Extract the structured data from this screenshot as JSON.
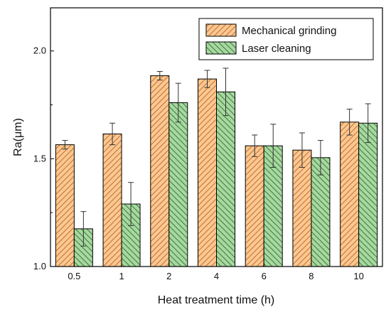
{
  "chart_data": {
    "type": "bar",
    "title": "",
    "xlabel": "Heat treatment time (h)",
    "ylabel": "Ra(μm)",
    "ylim": [
      1.0,
      2.2
    ],
    "yticks": [
      "1.0",
      "1.5",
      "2.0"
    ],
    "ytick_values": [
      1.0,
      1.5,
      2.0
    ],
    "categories": [
      "0.5",
      "1",
      "2",
      "4",
      "6",
      "8",
      "10"
    ],
    "grid": false,
    "legend_position": "top-right",
    "series": [
      {
        "name": "Mechanical grinding",
        "values": [
          1.565,
          1.615,
          1.885,
          1.87,
          1.56,
          1.54,
          1.67
        ],
        "errors": [
          0.02,
          0.05,
          0.02,
          0.04,
          0.05,
          0.08,
          0.06
        ],
        "color": "#FCC88F",
        "hatch_color": "#C0703A",
        "hatch": "diagonal-up"
      },
      {
        "name": "Laser cleaning",
        "values": [
          1.175,
          1.29,
          1.76,
          1.81,
          1.56,
          1.505,
          1.665
        ],
        "errors": [
          0.08,
          0.1,
          0.09,
          0.11,
          0.1,
          0.08,
          0.09
        ],
        "color": "#A7D8A0",
        "hatch_color": "#3E7A3E",
        "hatch": "diagonal-down"
      }
    ]
  }
}
